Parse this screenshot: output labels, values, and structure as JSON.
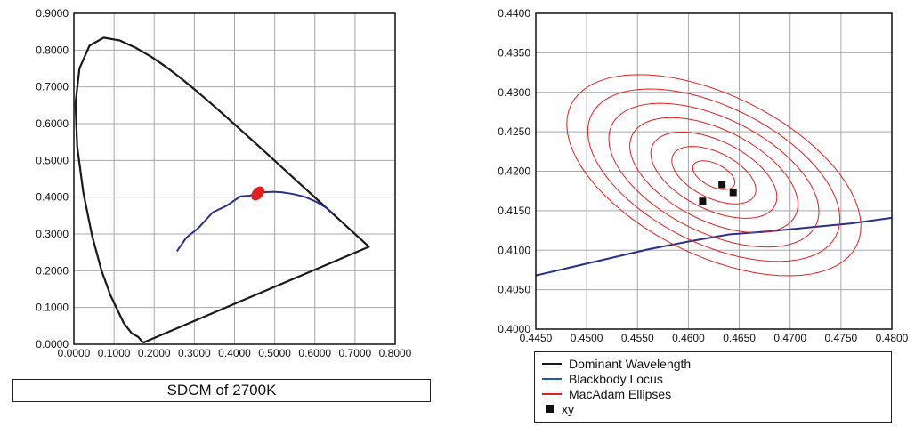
{
  "caption": "SDCM of 2700K",
  "legend": {
    "items": [
      {
        "label": "Dominant Wavelength",
        "color": "#1a1a1a",
        "kind": "line"
      },
      {
        "label": "Blackbody Locus",
        "color": "#1f5fa8",
        "kind": "line"
      },
      {
        "label": "MacAdam Ellipses",
        "color": "#e02020",
        "kind": "line"
      },
      {
        "label": "xy",
        "color": "#1a1a1a",
        "kind": "square"
      }
    ]
  },
  "chart_data": [
    {
      "type": "line",
      "title": "",
      "xlim": [
        0,
        0.8
      ],
      "ylim": [
        0,
        0.9
      ],
      "x_ticks": [
        "0.0000",
        "0.1000",
        "0.2000",
        "0.3000",
        "0.4000",
        "0.5000",
        "0.6000",
        "0.7000",
        "0.8000"
      ],
      "y_ticks": [
        "0.0000",
        "0.1000",
        "0.2000",
        "0.3000",
        "0.4000",
        "0.5000",
        "0.6000",
        "0.7000",
        "0.8000",
        "0.9000"
      ],
      "grid": true,
      "series": [
        {
          "role": "spectral-locus",
          "color": "#1a1a1a",
          "points": [
            [
              0.1741,
              0.005
            ],
            [
              0.17,
              0.007
            ],
            [
              0.16,
              0.02
            ],
            [
              0.144,
              0.0297
            ],
            [
              0.124,
              0.058
            ],
            [
              0.0913,
              0.1327
            ],
            [
              0.0687,
              0.2007
            ],
            [
              0.0454,
              0.295
            ],
            [
              0.0235,
              0.4127
            ],
            [
              0.0082,
              0.5384
            ],
            [
              0.0039,
              0.6548
            ],
            [
              0.0139,
              0.7502
            ],
            [
              0.0389,
              0.812
            ],
            [
              0.0743,
              0.8338
            ],
            [
              0.1142,
              0.8262
            ],
            [
              0.1547,
              0.8059
            ],
            [
              0.1929,
              0.7816
            ],
            [
              0.2296,
              0.7543
            ],
            [
              0.2658,
              0.7243
            ],
            [
              0.3016,
              0.6923
            ],
            [
              0.3373,
              0.6589
            ],
            [
              0.3731,
              0.6245
            ],
            [
              0.4087,
              0.5896
            ],
            [
              0.4441,
              0.5547
            ],
            [
              0.4788,
              0.5202
            ],
            [
              0.5125,
              0.4866
            ],
            [
              0.5448,
              0.4544
            ],
            [
              0.5752,
              0.4242
            ],
            [
              0.6029,
              0.3965
            ],
            [
              0.627,
              0.3725
            ],
            [
              0.6482,
              0.3514
            ],
            [
              0.6658,
              0.334
            ],
            [
              0.6801,
              0.3197
            ],
            [
              0.6915,
              0.3083
            ],
            [
              0.7006,
              0.2993
            ],
            [
              0.7079,
              0.292
            ],
            [
              0.714,
              0.2859
            ],
            [
              0.7191,
              0.2809
            ],
            [
              0.7347,
              0.2653
            ]
          ],
          "closed": true
        },
        {
          "role": "blackbody-locus",
          "color": "#2a2f8f",
          "points": [
            [
              0.2565,
              0.2531
            ],
            [
              0.28,
              0.29
            ],
            [
              0.3101,
              0.3162
            ],
            [
              0.3457,
              0.3587
            ],
            [
              0.3805,
              0.3768
            ],
            [
              0.4146,
              0.4021
            ],
            [
              0.4369,
              0.4041
            ],
            [
              0.4598,
              0.4106
            ],
            [
              0.4769,
              0.4137
            ],
            [
              0.4967,
              0.4146
            ],
            [
              0.5167,
              0.4133
            ],
            [
              0.5448,
              0.4087
            ],
            [
              0.5743,
              0.4012
            ],
            [
              0.6036,
              0.3874
            ],
            [
              0.63,
              0.37
            ],
            [
              0.648,
              0.353
            ]
          ]
        }
      ],
      "ellipse_marker": {
        "x": 0.4578,
        "y": 0.4101,
        "color": "#e02020"
      }
    },
    {
      "type": "line",
      "title": "",
      "xlim": [
        0.445,
        0.48
      ],
      "ylim": [
        0.4,
        0.44
      ],
      "x_ticks": [
        "0.4450",
        "0.4500",
        "0.4550",
        "0.4600",
        "0.4650",
        "0.4700",
        "0.4750",
        "0.4800"
      ],
      "y_ticks": [
        "0.4000",
        "0.4050",
        "0.4100",
        "0.4150",
        "0.4200",
        "0.4250",
        "0.4300",
        "0.4350",
        "0.4400"
      ],
      "grid": true,
      "series": [
        {
          "role": "blackbody-locus",
          "color": "#2a2f8f",
          "points": [
            [
              0.445,
              0.4068
            ],
            [
              0.448,
              0.4077
            ],
            [
              0.452,
              0.4089
            ],
            [
              0.456,
              0.4101
            ],
            [
              0.46,
              0.4111
            ],
            [
              0.464,
              0.412
            ],
            [
              0.468,
              0.4124
            ],
            [
              0.472,
              0.4129
            ],
            [
              0.476,
              0.4134
            ],
            [
              0.48,
              0.4141
            ]
          ]
        }
      ],
      "macadam_ellipses": {
        "color": "#e02020",
        "center": [
          0.4625,
          0.4195
        ],
        "steps": [
          1,
          2,
          3,
          4,
          5,
          6,
          7
        ],
        "a_per_step": 0.00135,
        "b_per_step": 0.0024,
        "rotation_deg": 52
      },
      "xy_points": [
        [
          0.4614,
          0.4162
        ],
        [
          0.4633,
          0.4183
        ],
        [
          0.4644,
          0.4173
        ]
      ]
    }
  ]
}
